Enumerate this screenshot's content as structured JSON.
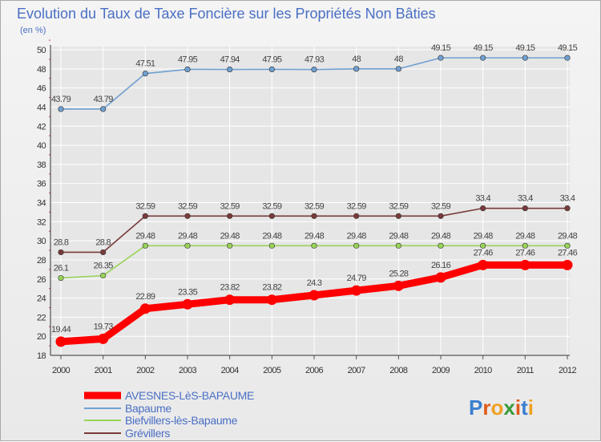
{
  "chart_data": {
    "type": "line",
    "title": "Evolution du Taux de Taxe Foncière sur les Propriétés Non Bâties",
    "subtitle": "(en %)",
    "xlabel": "",
    "ylabel": "",
    "ylim": [
      18,
      50
    ],
    "yticks": [
      "18",
      "20",
      "22",
      "24",
      "26",
      "28",
      "30",
      "32",
      "34",
      "36",
      "38",
      "40",
      "42",
      "44",
      "46",
      "48",
      "50"
    ],
    "grid": true,
    "legend_position": "bottom-left",
    "categories": [
      "2000",
      "2001",
      "2002",
      "2003",
      "2004",
      "2005",
      "2006",
      "2007",
      "2008",
      "2009",
      "2010",
      "2011",
      "2012"
    ],
    "series": [
      {
        "name": "AVESNES-LèS-BAPAUME",
        "color": "#ff0000",
        "values": [
          19.44,
          19.73,
          22.89,
          23.35,
          23.82,
          23.82,
          24.3,
          24.79,
          25.28,
          26.16,
          27.46,
          27.46,
          27.46
        ],
        "labels": [
          "19.44",
          "19.73",
          "22.89",
          "23.35",
          "23.82",
          "23.82",
          "24.3",
          "24.79",
          "25.28",
          "26.16",
          "27.46",
          "27.46",
          "27.46"
        ]
      },
      {
        "name": "Bapaume",
        "color": "#6fa0d0",
        "values": [
          43.79,
          43.79,
          47.51,
          47.95,
          47.94,
          47.95,
          47.93,
          48,
          48,
          49.15,
          49.15,
          49.15,
          49.15
        ],
        "labels": [
          "43.79",
          "43.79",
          "47.51",
          "47.95",
          "47.94",
          "47.95",
          "47.93",
          "48",
          "48",
          "49.15",
          "49.15",
          "49.15",
          "49.15"
        ]
      },
      {
        "name": "Biefvillers-lès-Bapaume",
        "color": "#99d35a",
        "values": [
          26.1,
          26.35,
          29.48,
          29.48,
          29.48,
          29.48,
          29.48,
          29.48,
          29.48,
          29.48,
          29.48,
          29.48,
          29.48
        ],
        "labels": [
          "26.1",
          "26.35",
          "29.48",
          "29.48",
          "29.48",
          "29.48",
          "29.48",
          "29.48",
          "29.48",
          "29.48",
          "29.48",
          "29.48",
          "29.48"
        ]
      },
      {
        "name": "Grévillers",
        "color": "#7a3a3a",
        "values": [
          28.8,
          28.8,
          32.59,
          32.59,
          32.59,
          32.59,
          32.59,
          32.59,
          32.59,
          32.59,
          33.4,
          33.4,
          33.4
        ],
        "labels": [
          "28.8",
          "28.8",
          "32.59",
          "32.59",
          "32.59",
          "32.59",
          "32.59",
          "32.59",
          "32.59",
          "32.59",
          "33.4",
          "33.4",
          "33.4"
        ]
      }
    ]
  },
  "logo": {
    "letters": [
      "P",
      "r",
      "o",
      "x",
      "i",
      "t",
      "i"
    ],
    "colors": [
      "#3a7fd0",
      "#e05a1a",
      "#f0a020",
      "#3a9a3a",
      "#e05a1a",
      "#3a7fd0",
      "#f0a020"
    ]
  }
}
